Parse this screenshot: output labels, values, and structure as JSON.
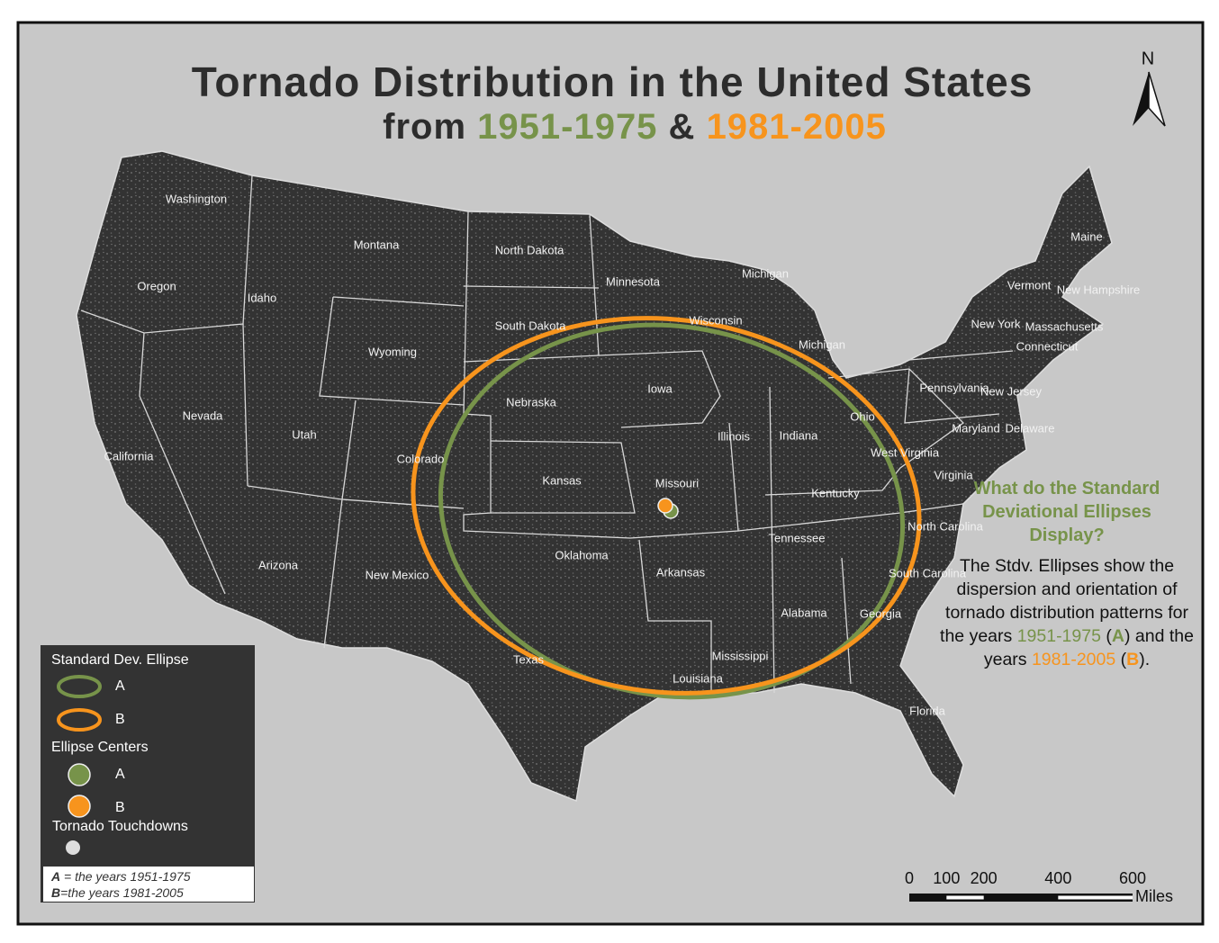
{
  "title": "Tornado Distribution in the United States",
  "subtitle": [
    "from ",
    "1951-1975",
    " & ",
    "1981-2005"
  ],
  "north_label": "N",
  "states": [
    "Washington",
    "Oregon",
    "California",
    "Nevada",
    "Idaho",
    "Montana",
    "Wyoming",
    "Utah",
    "Colorado",
    "Arizona",
    "New Mexico",
    "North Dakota",
    "South Dakota",
    "Nebraska",
    "Kansas",
    "Oklahoma",
    "Texas",
    "Minnesota",
    "Iowa",
    "Missouri",
    "Arkansas",
    "Louisiana",
    "Wisconsin",
    "Michigan",
    "Michigan",
    "Illinois",
    "Indiana",
    "Ohio",
    "Kentucky",
    "Tennessee",
    "Mississippi",
    "Alabama",
    "Georgia",
    "Florida",
    "South Carolina",
    "North Carolina",
    "Virginia",
    "West Virginia",
    "Pennsylvania",
    "New York",
    "Maryland",
    "Delaware",
    "New Jersey",
    "Connecticut",
    "Massachusetts",
    "Vermont",
    "New Hampshire",
    "Maine"
  ],
  "legend": {
    "ellipse_heading": "Standard Dev. Ellipse",
    "ellipse_items": [
      "A",
      "B"
    ],
    "center_heading": "Ellipse Centers",
    "center_items": [
      "A",
      "B"
    ],
    "touchdown_heading": "Tornado Touchdowns",
    "notes": [
      [
        "A",
        " = the years 1951-1975"
      ],
      [
        "B",
        "=the years 1981-2005"
      ]
    ]
  },
  "sidebar": {
    "question": "What do the Standard Deviational Ellipses Display?",
    "description": [
      "The Stdv. Ellipses show the dispersion and orientation of tornado distribution patterns for the years ",
      "1951-1975",
      " (",
      "A",
      ") and the years ",
      "1981-2005",
      " (",
      "B",
      ")."
    ]
  },
  "scale_bar": {
    "ticks": [
      0,
      100,
      200,
      400,
      600
    ],
    "unit": "Miles"
  }
}
